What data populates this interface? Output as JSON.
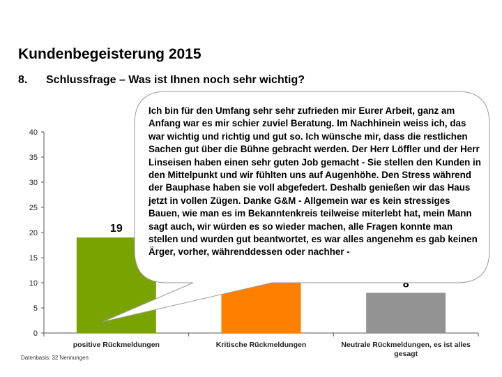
{
  "slide": {
    "title": "Kundenbegeisterung 2015",
    "question_number": "8.",
    "question": "Schlussfrage – Was ist Ihnen noch sehr wichtig?",
    "source_note": "Datenbasis: 32 Nennungen",
    "callout_text": "Ich bin für den Umfang sehr sehr zufrieden mir Eurer Arbeit, ganz am Anfang war es mir schier zuviel Beratung. Im Nachhinein weiss ich, das war wichtig und richtig und gut so. Ich wünsche mir, dass die restlichen Sachen gut über die Bühne gebracht werden. Der Herr Löffler und der Herr Linseisen haben einen sehr guten Job gemacht - Sie stellen den Kunden in den Mittelpunkt und wir fühlten uns auf Augenhöhe. Den Stress während der Bauphase haben sie voll abgefedert. Deshalb genießen wir das Haus jetzt in vollen Zügen. Danke G&M - Allgemein war es kein stressiges Bauen, wie man es im Bekanntenkreis teilweise miterlebt hat, mein Mann sagt auch, wir würden es so wieder machen, alle Fragen konnte man stellen und wurden gut beantwortet, es war alles angenehm es gab keinen Ärger, vorher, währenddessen oder nachher -"
  },
  "chart_data": {
    "type": "bar",
    "categories": [
      "positive Rückmeldungen",
      "Kritische Rückmeldungen",
      "Neutrale Rückmeldungen, es ist alles gesagt"
    ],
    "values": [
      19,
      11,
      8
    ],
    "colors": [
      "#78a300",
      "#ff7f00",
      "#939393"
    ],
    "ylim": [
      0,
      40
    ],
    "yticks": [
      0,
      5,
      10,
      15,
      20,
      25,
      30,
      35,
      40
    ],
    "grid": false,
    "title": "",
    "xlabel": "",
    "ylabel": ""
  }
}
